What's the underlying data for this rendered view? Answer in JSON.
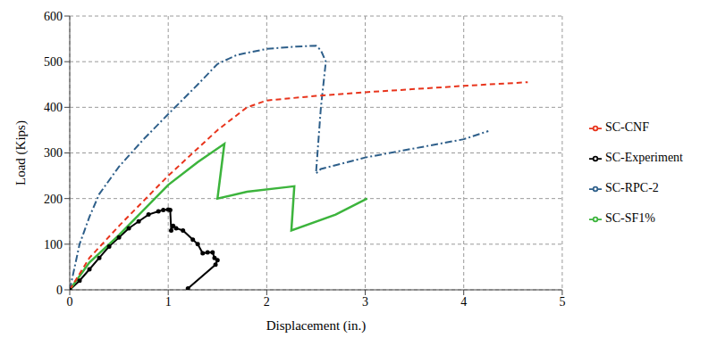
{
  "chart_data": {
    "type": "line",
    "x_label": "Displacement (in.)",
    "y_label": "Load (Kips)",
    "xlim": [
      0,
      5
    ],
    "xticks": [
      0,
      1,
      2,
      3,
      4,
      5
    ],
    "ylim": [
      0,
      600
    ],
    "yticks": [
      0,
      100,
      200,
      300,
      400,
      500,
      600
    ],
    "grid": true,
    "legend": "right",
    "series": [
      {
        "name": "SC-Experiment",
        "color": "#000000",
        "marker": "circle",
        "line_style": "solid",
        "x": [
          0,
          0.1,
          0.2,
          0.3,
          0.4,
          0.5,
          0.6,
          0.7,
          0.8,
          0.9,
          0.95,
          1.0,
          1.02,
          1.03,
          1.05,
          1.08,
          1.15,
          1.25,
          1.3,
          1.35,
          1.4,
          1.45,
          1.47,
          1.5,
          1.48,
          1.2
        ],
        "values": [
          0,
          20,
          45,
          70,
          95,
          115,
          135,
          150,
          165,
          172,
          175,
          176,
          175,
          130,
          140,
          135,
          130,
          110,
          100,
          80,
          82,
          82,
          70,
          65,
          55,
          3
        ]
      },
      {
        "name": "SC-SF1%",
        "color": "#3cb43c",
        "marker": "none",
        "line_style": "solid",
        "x": [
          0,
          0.2,
          0.5,
          1.0,
          1.3,
          1.57,
          1.5,
          1.8,
          2.2,
          2.28,
          2.25,
          2.7,
          3.02
        ],
        "values": [
          0,
          60,
          120,
          230,
          280,
          320,
          200,
          215,
          225,
          227,
          130,
          165,
          200
        ]
      },
      {
        "name": "SC-RPC-2",
        "color": "#2e5f8a",
        "marker": "none",
        "line_style": "dashdot",
        "x": [
          0,
          0.05,
          0.1,
          0.2,
          0.3,
          0.5,
          0.75,
          1.0,
          1.3,
          1.5,
          1.7,
          2.0,
          2.3,
          2.5,
          2.55,
          2.6,
          2.55,
          2.5,
          2.55,
          3.0,
          3.5,
          4.0,
          4.25
        ],
        "values": [
          0,
          50,
          100,
          160,
          210,
          270,
          330,
          385,
          450,
          495,
          515,
          528,
          533,
          535,
          525,
          500,
          400,
          255,
          265,
          290,
          310,
          330,
          348
        ]
      },
      {
        "name": "SC-CNF",
        "color": "#e8341c",
        "marker": "none",
        "line_style": "dashed",
        "x": [
          0,
          0.2,
          0.5,
          1.0,
          1.5,
          1.8,
          2.0,
          2.5,
          3.0,
          3.5,
          4.0,
          4.65
        ],
        "values": [
          0,
          70,
          140,
          250,
          350,
          400,
          415,
          425,
          433,
          440,
          447,
          455
        ]
      }
    ]
  }
}
